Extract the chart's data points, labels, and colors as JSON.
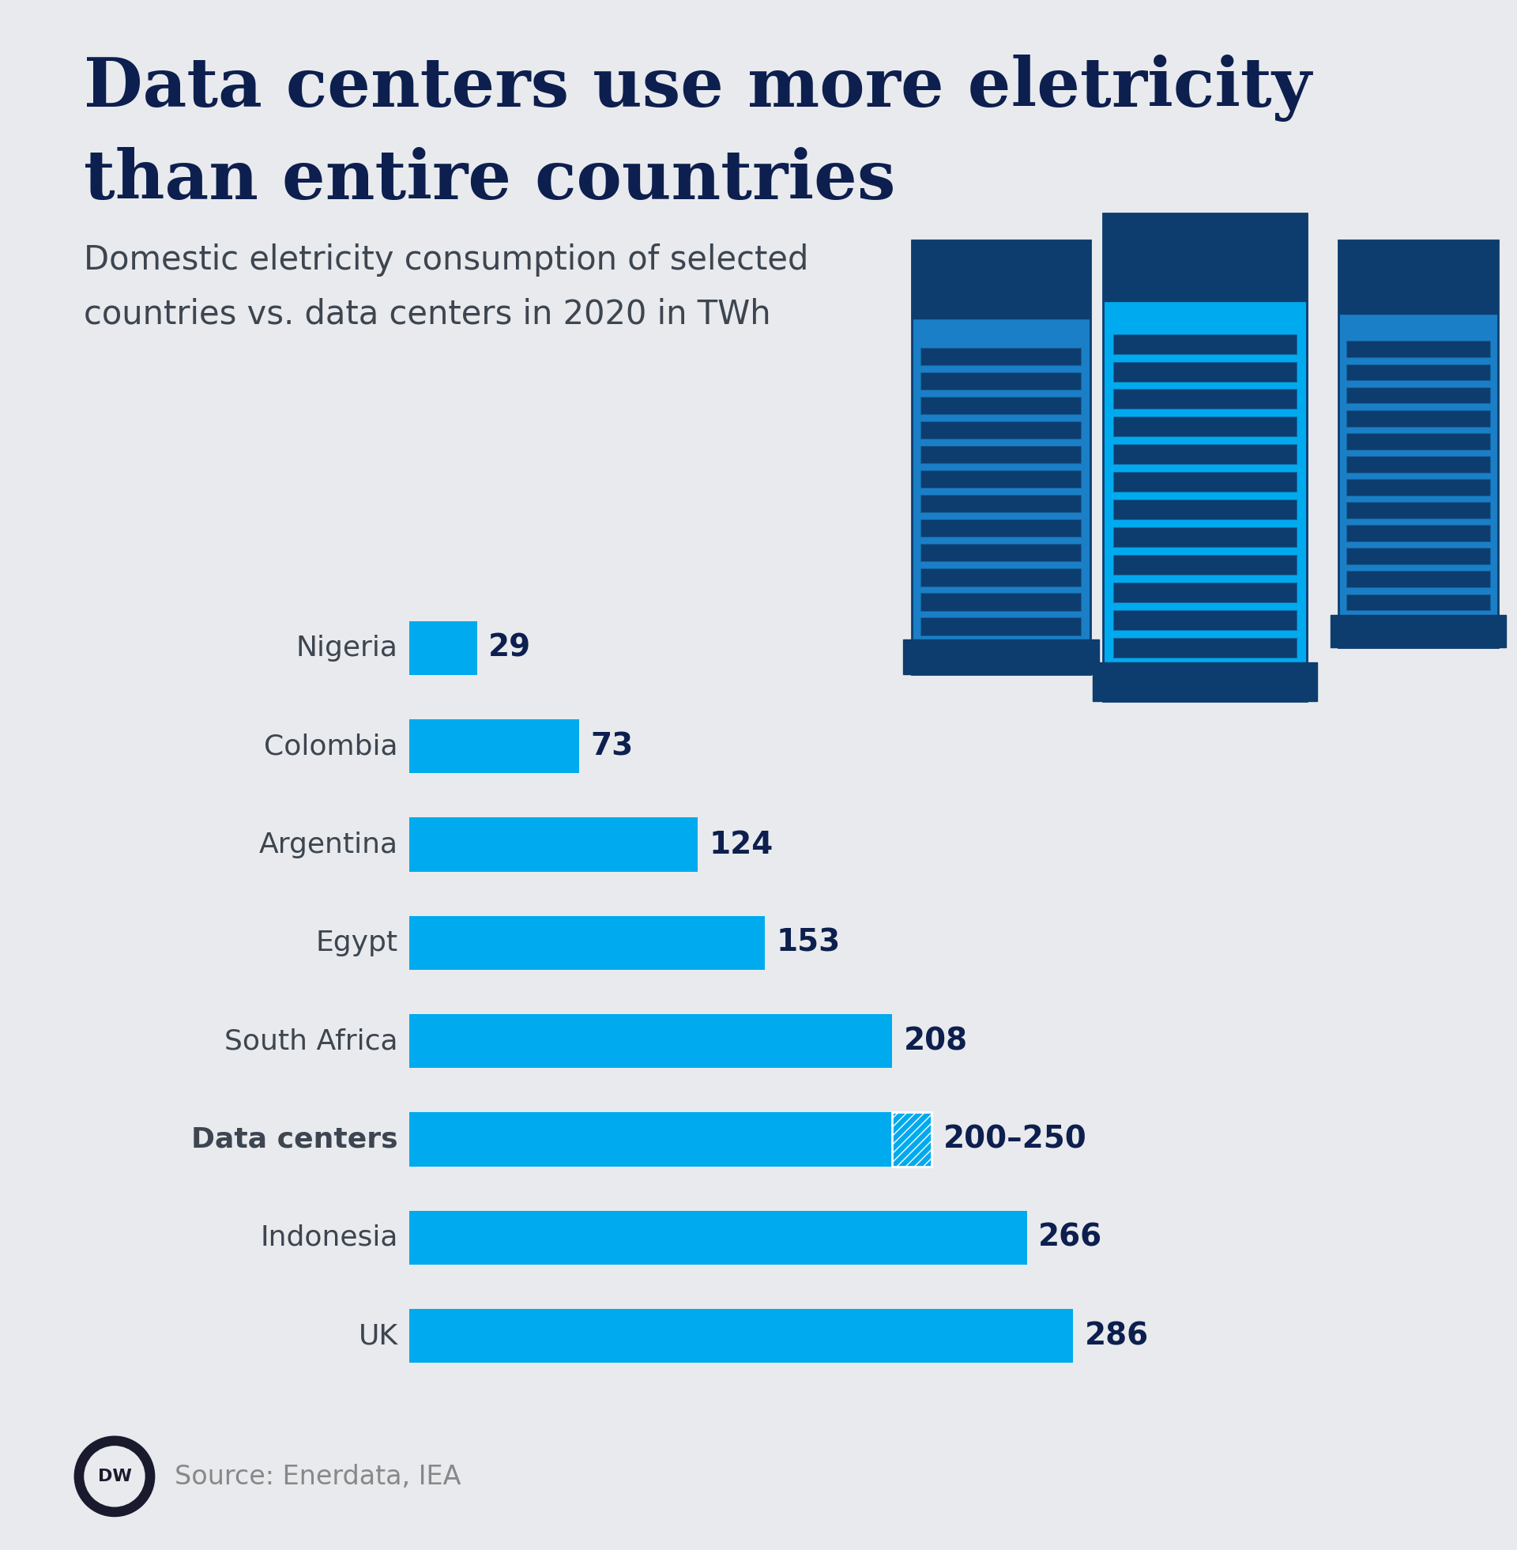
{
  "title_line1": "Data centers use more eletricity",
  "title_line2": "than entire countries",
  "subtitle_line1": "Domestic eletricity consumption of selected",
  "subtitle_line2": "countries vs. data centers in 2020 in TWh",
  "background_color": "#e8eaed",
  "title_color": "#0d1f4e",
  "subtitle_color": "#3d4550",
  "bar_color": "#00aaee",
  "label_color": "#3d4550",
  "value_color": "#0d1f4e",
  "source_color": "#888888",
  "categories": [
    "Nigeria",
    "Colombia",
    "Argentina",
    "Egypt",
    "South Africa",
    "Data centers",
    "Indonesia",
    "UK"
  ],
  "values": [
    29,
    73,
    124,
    153,
    208,
    208,
    266,
    286
  ],
  "hatch_values": [
    0,
    0,
    0,
    0,
    0,
    17,
    0,
    0
  ],
  "labels": [
    "29",
    "73",
    "124",
    "153",
    "208",
    "200–250",
    "266",
    "286"
  ],
  "bold_index": 5,
  "source_text": "Source: Enerdata, IEA",
  "xlim_max": 340
}
